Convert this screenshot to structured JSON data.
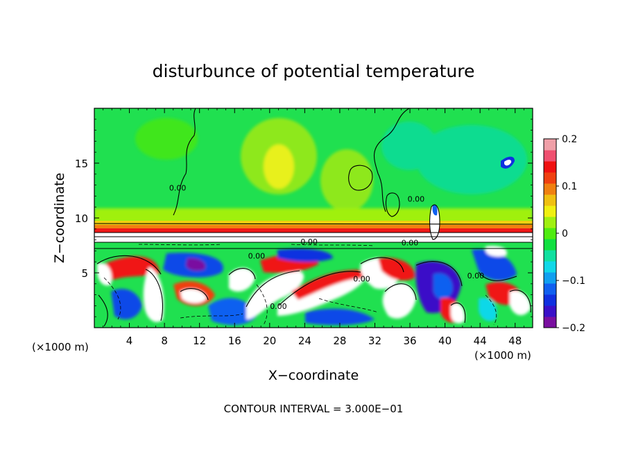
{
  "chart_data": {
    "type": "heatmap",
    "title": "disturbunce of potential temperature",
    "xlabel": "X−coordinate",
    "ylabel": "Z−coordinate",
    "x_unit_label": "(×1000 m)",
    "z_unit_label": "(×1000 m)",
    "footer": "CONTOUR INTERVAL = 3.000E−01",
    "xlim": [
      0,
      50
    ],
    "ylim": [
      0,
      20
    ],
    "x_ticks": [
      4,
      8,
      12,
      16,
      20,
      24,
      28,
      32,
      36,
      40,
      44,
      48
    ],
    "x_tick_labels": [
      "4",
      "8",
      "12",
      "16",
      "20",
      "24",
      "28",
      "32",
      "36",
      "40",
      "44",
      "48"
    ],
    "y_ticks": [
      5,
      10,
      15
    ],
    "y_tick_labels": [
      "5",
      "10",
      "15"
    ],
    "colorbar": {
      "min": -0.2,
      "max": 0.2,
      "ticks": [
        0.2,
        0.1,
        0,
        -0.1,
        -0.2
      ],
      "tick_labels": [
        "0.2",
        "0.1",
        "0",
        "−0.1",
        "−0.2"
      ],
      "colors": [
        "#7a0fa0",
        "#3a10c8",
        "#1030e0",
        "#1060f0",
        "#10a0f0",
        "#10d8e8",
        "#10e0a0",
        "#10e040",
        "#50ec10",
        "#a0f010",
        "#f0f010",
        "#f0c010",
        "#f08010",
        "#f04010",
        "#f01010",
        "#f05070",
        "#f0a0a8"
      ]
    },
    "contour_labels": [
      {
        "text": "0.00",
        "x": 9.5,
        "z": 12.5
      },
      {
        "text": "0.00",
        "x": 18.5,
        "z": 6.3
      },
      {
        "text": "0.00",
        "x": 24.5,
        "z": 7.6
      },
      {
        "text": "0.00",
        "x": 30.5,
        "z": 4.2
      },
      {
        "text": "0.00",
        "x": 36.0,
        "z": 7.5
      },
      {
        "text": "0.00",
        "x": 36.7,
        "z": 11.5
      },
      {
        "text": "0.00",
        "x": 43.5,
        "z": 4.5
      },
      {
        "text": "0.00",
        "x": 21.0,
        "z": 1.7
      }
    ]
  }
}
